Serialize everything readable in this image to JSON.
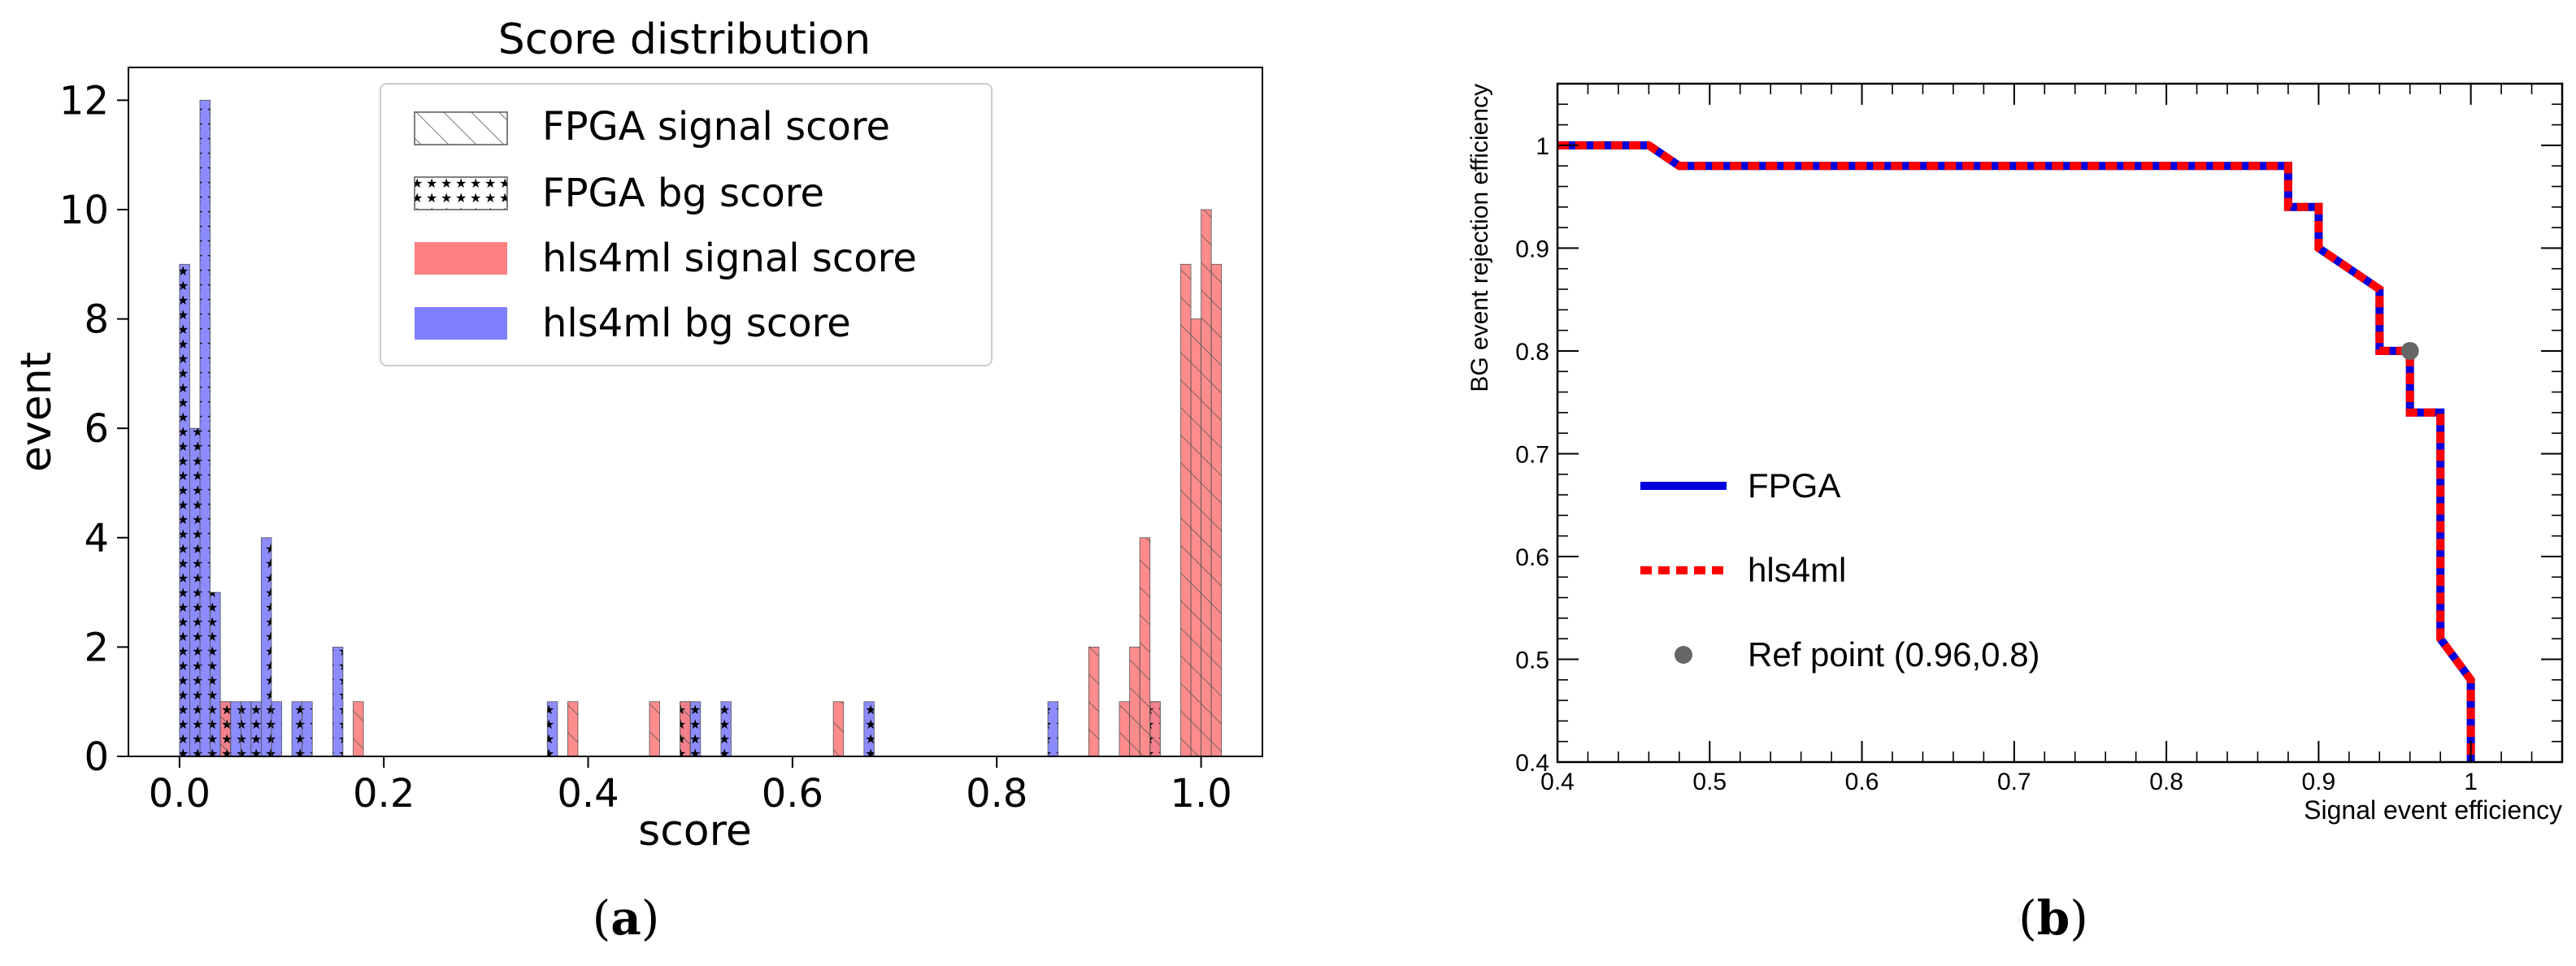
{
  "chart_data": [
    {
      "id": "a",
      "type": "bar",
      "subtype": "histogram",
      "title": "Score distribution",
      "xlabel": "score",
      "ylabel": "event",
      "xlim": [
        -0.05,
        1.06
      ],
      "ylim": [
        0,
        12.6
      ],
      "xticks": [
        "0.0",
        "0.2",
        "0.4",
        "0.6",
        "0.8",
        "1.0"
      ],
      "xtick_values": [
        0.0,
        0.2,
        0.4,
        0.6,
        0.8,
        1.0
      ],
      "yticks": [
        "0",
        "2",
        "4",
        "6",
        "8",
        "10",
        "12"
      ],
      "ytick_values": [
        0,
        2,
        4,
        6,
        8,
        10,
        12
      ],
      "bin_width": 0.01,
      "legend_position": "upper-center",
      "legend": [
        {
          "label": "FPGA signal score",
          "style": "hatch-diagonal"
        },
        {
          "label": "FPGA bg score",
          "style": "hatch-star"
        },
        {
          "label": "hls4ml signal score",
          "color": "#ff8080"
        },
        {
          "label": "hls4ml bg score",
          "color": "#8080ff"
        }
      ],
      "series": [
        {
          "name": "hls4ml bg score",
          "color": "#8080ff",
          "x": [
            0.005,
            0.015,
            0.025,
            0.035,
            0.045,
            0.055,
            0.065,
            0.075,
            0.085,
            0.095,
            0.115,
            0.125,
            0.155,
            0.365,
            0.495,
            0.505,
            0.535,
            0.675,
            0.855,
            0.955
          ],
          "values": [
            9,
            6,
            12,
            3,
            1,
            1,
            1,
            1,
            4,
            1,
            1,
            1,
            2,
            1,
            1,
            1,
            1,
            1,
            1,
            1
          ]
        },
        {
          "name": "hls4ml signal score",
          "color": "#ff8080",
          "x": [
            0.045,
            0.175,
            0.385,
            0.465,
            0.495,
            0.645,
            0.895,
            0.925,
            0.935,
            0.945,
            0.955,
            0.985,
            0.995,
            1.005,
            1.015
          ],
          "values": [
            1,
            1,
            1,
            1,
            1,
            1,
            2,
            1,
            2,
            4,
            1,
            9,
            8,
            10,
            9
          ]
        },
        {
          "name": "FPGA bg score",
          "style": "hatch-star",
          "x": [
            0.005,
            0.015,
            0.025,
            0.035,
            0.045,
            0.055,
            0.065,
            0.075,
            0.085,
            0.095,
            0.115,
            0.125,
            0.155,
            0.365,
            0.495,
            0.505,
            0.535,
            0.675,
            0.855,
            0.955
          ],
          "values": [
            9,
            6,
            12,
            3,
            1,
            1,
            1,
            1,
            4,
            1,
            1,
            1,
            2,
            1,
            1,
            1,
            1,
            1,
            1,
            1
          ]
        },
        {
          "name": "FPGA signal score",
          "style": "hatch-diagonal",
          "x": [
            0.045,
            0.175,
            0.385,
            0.465,
            0.495,
            0.645,
            0.895,
            0.925,
            0.935,
            0.945,
            0.955,
            0.985,
            0.995,
            1.005,
            1.015
          ],
          "values": [
            1,
            1,
            1,
            1,
            1,
            1,
            2,
            1,
            2,
            4,
            1,
            9,
            8,
            10,
            9
          ]
        }
      ]
    },
    {
      "id": "b",
      "type": "line",
      "title": "",
      "xlabel": "Signal event efficiency",
      "ylabel": "BG event rejection efficiency",
      "xlim": [
        0.4,
        1.06
      ],
      "ylim": [
        0.4,
        1.06
      ],
      "xticks": [
        "0.4",
        "0.5",
        "0.6",
        "0.7",
        "0.8",
        "0.9",
        "1"
      ],
      "xtick_values": [
        0.4,
        0.5,
        0.6,
        0.7,
        0.8,
        0.9,
        1.0
      ],
      "yticks": [
        "0.4",
        "0.5",
        "0.6",
        "0.7",
        "0.8",
        "0.9",
        "1"
      ],
      "ytick_values": [
        0.4,
        0.5,
        0.6,
        0.7,
        0.8,
        0.9,
        1.0
      ],
      "legend_position": "lower-left",
      "series": [
        {
          "name": "FPGA",
          "color": "#0000dd",
          "style": "solid",
          "x": [
            0.4,
            0.46,
            0.48,
            0.88,
            0.88,
            0.9,
            0.9,
            0.94,
            0.94,
            0.96,
            0.96,
            0.98,
            0.98,
            1.0,
            1.0
          ],
          "y": [
            1.0,
            1.0,
            0.98,
            0.98,
            0.94,
            0.94,
            0.9,
            0.86,
            0.8,
            0.8,
            0.74,
            0.74,
            0.52,
            0.48,
            0.4
          ]
        },
        {
          "name": "hls4ml",
          "color": "#ff0000",
          "style": "dashed",
          "x": [
            0.4,
            0.46,
            0.48,
            0.88,
            0.88,
            0.9,
            0.9,
            0.94,
            0.94,
            0.96,
            0.96,
            0.98,
            0.98,
            1.0,
            1.0
          ],
          "y": [
            1.0,
            1.0,
            0.98,
            0.98,
            0.94,
            0.94,
            0.9,
            0.86,
            0.8,
            0.8,
            0.74,
            0.74,
            0.52,
            0.48,
            0.4
          ]
        }
      ],
      "points": [
        {
          "name": "Ref point (0.96,0.8)",
          "x": 0.96,
          "y": 0.8,
          "color": "#666666"
        }
      ]
    }
  ],
  "captions": {
    "a_open": "(",
    "a_letter": "a",
    "a_close": ")",
    "b_open": "(",
    "b_letter": "b",
    "b_close": ")"
  }
}
